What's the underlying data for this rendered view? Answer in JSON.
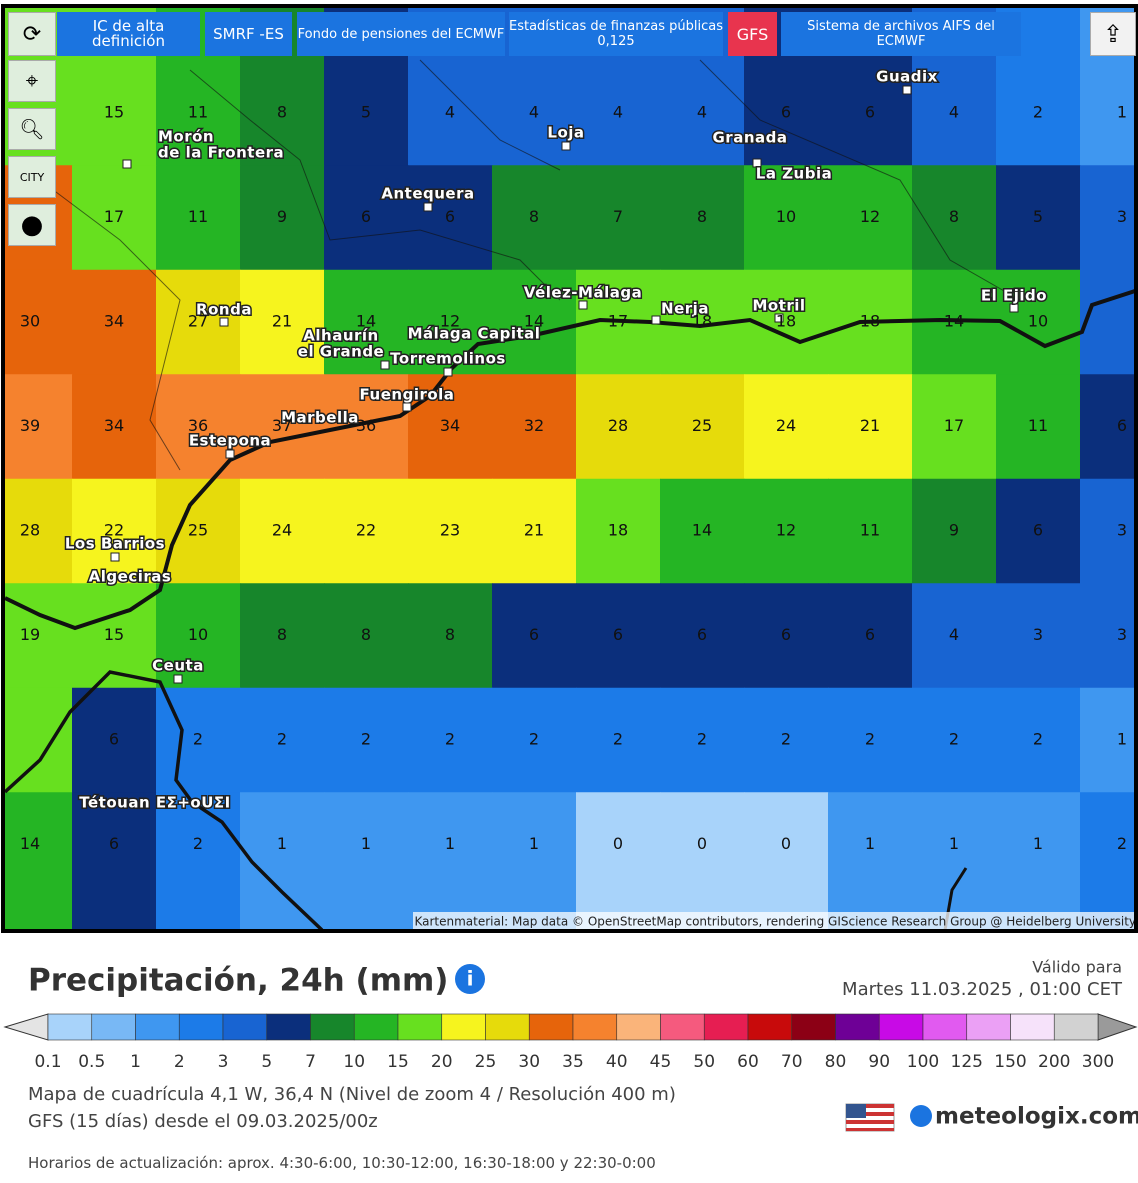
{
  "toolbar": {
    "buttons": [
      {
        "label": "IC de alta definición"
      },
      {
        "label": "SMRF -ES"
      },
      {
        "label": "Fondo de pensiones del ECMWF"
      },
      {
        "label": "Estadísticas de finanzas públicas",
        "sublabel": "0,125"
      },
      {
        "label": "GFS"
      },
      {
        "label": "Sistema de archivos AIFS del ECMWF"
      }
    ],
    "city_button": "CITY"
  },
  "map": {
    "grid": [
      [
        null,
        15,
        11,
        8,
        5,
        4,
        4,
        4,
        4,
        6,
        6,
        4,
        2,
        1
      ],
      [
        null,
        17,
        11,
        9,
        6,
        6,
        8,
        7,
        8,
        10,
        12,
        8,
        5,
        3
      ],
      [
        30,
        34,
        27,
        21,
        14,
        12,
        14,
        17,
        18,
        18,
        18,
        14,
        10,
        null
      ],
      [
        39,
        34,
        36,
        37,
        36,
        34,
        32,
        28,
        25,
        24,
        21,
        17,
        11,
        6
      ],
      [
        28,
        22,
        25,
        24,
        22,
        23,
        21,
        18,
        14,
        12,
        11,
        9,
        6,
        3
      ],
      [
        19,
        15,
        10,
        8,
        8,
        8,
        6,
        6,
        6,
        6,
        6,
        4,
        3,
        3
      ],
      [
        null,
        6,
        2,
        2,
        2,
        2,
        2,
        2,
        2,
        2,
        2,
        2,
        2,
        1
      ],
      [
        14,
        6,
        2,
        1,
        1,
        1,
        1,
        0,
        0,
        0,
        1,
        1,
        1,
        2
      ]
    ],
    "places": [
      [
        "Guadix"
      ],
      [
        "Loja"
      ],
      [
        "Granada"
      ],
      [
        "La Zubia"
      ],
      [
        "Antequera"
      ],
      [
        "Morón",
        "de la Frontera"
      ],
      [
        "Vélez-Málaga"
      ],
      [
        "Nerja"
      ],
      [
        "Motril"
      ],
      [
        "El Ejido"
      ],
      [
        "Ronda"
      ],
      [
        "Alhaurín",
        "el Grande"
      ],
      [
        "Málaga Capital"
      ],
      [
        "Torremolinos"
      ],
      [
        "Fuengirola"
      ],
      [
        "Marbella"
      ],
      [
        "Estepona"
      ],
      [
        "Los Barrios"
      ],
      [
        "Algeciras"
      ],
      [
        "Ceuta"
      ],
      [
        "Tétouan ΕΣ+οUΣΙ"
      ]
    ],
    "attribution": "Kartenmaterial: Map data © OpenStreetMap contributors, rendering GIScience Research Group @ Heidelberg University"
  },
  "legend": {
    "title": "Precipitación, 24h (mm)",
    "valid_label": "Válido para",
    "valid_time": "Martes 11.03.2025 , 01:00 CET",
    "ticks": [
      0.1,
      0.5,
      1,
      2,
      3,
      5,
      7,
      10,
      15,
      20,
      25,
      30,
      35,
      40,
      45,
      50,
      60,
      70,
      80,
      90,
      100,
      125,
      150,
      200,
      300
    ],
    "colors": [
      "#a8d3fa",
      "#78b8f5",
      "#3f97f0",
      "#1c7be8",
      "#1864d2",
      "#0b2f7c",
      "#17862b",
      "#25b524",
      "#67e01f",
      "#f6f41e",
      "#e6db0b",
      "#e6640b",
      "#f5822e",
      "#fab47a",
      "#f55a7e",
      "#e61e52",
      "#c80a0b",
      "#8c0015",
      "#6e0096",
      "#c80ae6",
      "#e15af0",
      "#eba0f5",
      "#f6e2fa",
      "#d2d2d2"
    ],
    "under_color": "#e4e4e4",
    "over_color": "#9a9a9a"
  },
  "footer": {
    "grid_info": "Mapa de cuadrícula 4,1 W, 36,4 N (Nivel de zoom 4 / Resolución 400 m)",
    "model_info": "GFS (15 días) desde el 09.03.2025/00z",
    "update_times": "Horarios de actualización: aprox. 4:30-6:00, 10:30-12:00, 16:30-18:00 y 22:30-0:00",
    "logo": "meteologix.com"
  }
}
